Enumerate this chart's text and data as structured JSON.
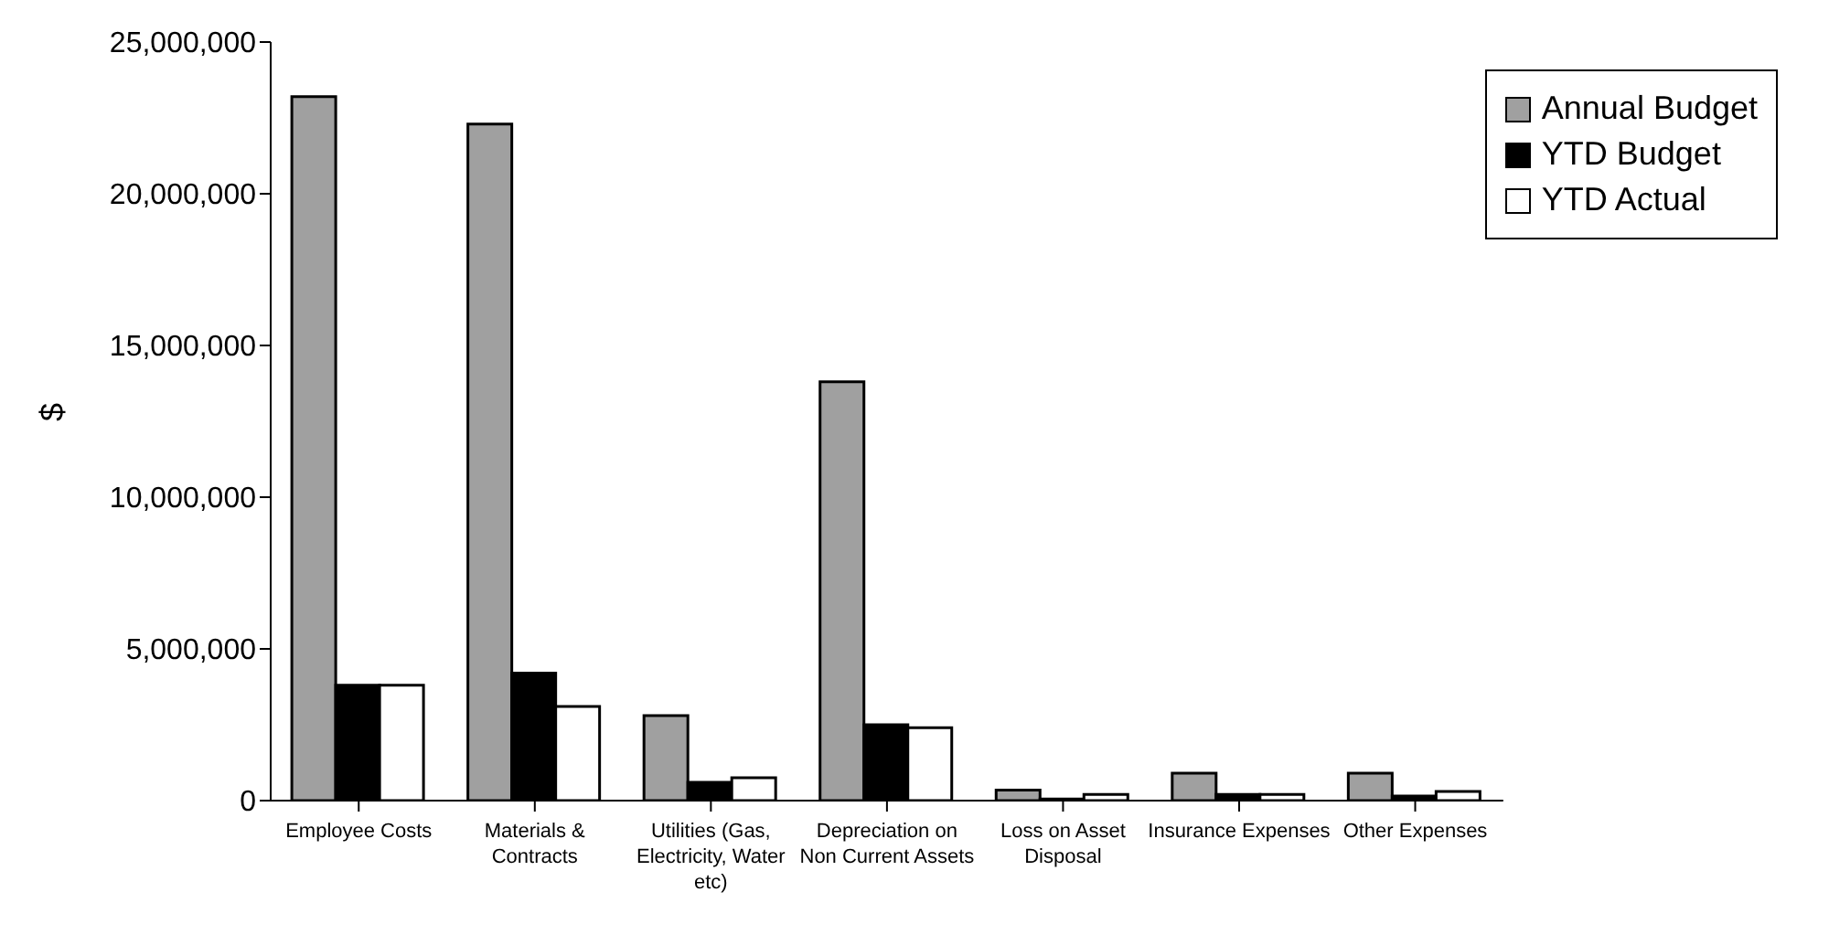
{
  "chart_data": {
    "type": "bar",
    "ylabel": "$",
    "categories": [
      "Employee Costs",
      "Materials & Contracts",
      "Utilities (Gas, Electricity, Water etc)",
      "Depreciation on Non Current Assets",
      "Loss on Asset Disposal",
      "Insurance Expenses",
      "Other Expenses"
    ],
    "series": [
      {
        "name": "Annual Budget",
        "color": "#a0a0a0",
        "values": [
          23200000,
          22300000,
          2800000,
          13800000,
          350000,
          900000,
          900000
        ]
      },
      {
        "name": "YTD Budget",
        "color": "#000000",
        "values": [
          3800000,
          4200000,
          600000,
          2500000,
          50000,
          200000,
          150000
        ]
      },
      {
        "name": "YTD Actual",
        "color": "#ffffff",
        "values": [
          3800000,
          3100000,
          750000,
          2400000,
          200000,
          200000,
          300000
        ]
      }
    ],
    "ylim": [
      0,
      25000000
    ],
    "yticks": [
      {
        "value": 0,
        "label": "0"
      },
      {
        "value": 5000000,
        "label": "5,000,000"
      },
      {
        "value": 10000000,
        "label": "10,000,000"
      },
      {
        "value": 15000000,
        "label": "15,000,000"
      },
      {
        "value": 20000000,
        "label": "20,000,000"
      },
      {
        "value": 25000000,
        "label": "25,000,000"
      }
    ],
    "grid": false,
    "legend": "top right"
  }
}
